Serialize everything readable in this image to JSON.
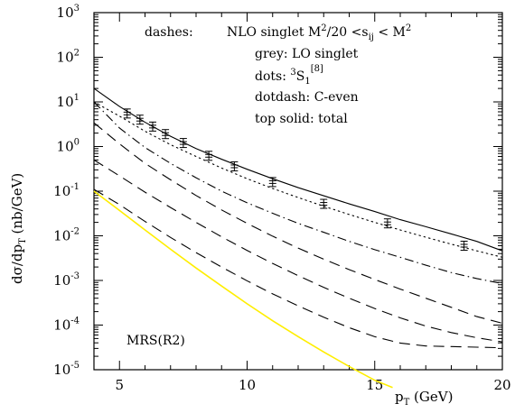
{
  "chart_data": {
    "type": "line",
    "title": "",
    "xlabel": "p_T (GeV)",
    "ylabel": "dσ/dp_T (nb/GeV)",
    "xlim": [
      4,
      20
    ],
    "ylim": [
      1e-05,
      1000
    ],
    "yscale": "log",
    "grid": false,
    "x_ticks": [
      {
        "value": 5,
        "label": "5"
      },
      {
        "value": 10,
        "label": "10"
      },
      {
        "value": 15,
        "label": "15"
      },
      {
        "value": 20,
        "label": "20"
      }
    ],
    "y_ticks": [
      {
        "value": 1000,
        "base": "10",
        "exp": "3"
      },
      {
        "value": 100,
        "base": "10",
        "exp": "2"
      },
      {
        "value": 10,
        "base": "10",
        "exp": "1"
      },
      {
        "value": 1,
        "base": "10",
        "exp": "0"
      },
      {
        "value": 0.1,
        "base": "10",
        "exp": "-1"
      },
      {
        "value": 0.01,
        "base": "10",
        "exp": "-2"
      },
      {
        "value": 0.001,
        "base": "10",
        "exp": "-3"
      },
      {
        "value": 0.0001,
        "base": "10",
        "exp": "-4"
      },
      {
        "value": 1e-05,
        "base": "10",
        "exp": "-5"
      }
    ],
    "legend_text": {
      "line1_a": "dashes:",
      "line1_b": "NLO singlet M",
      "line1_sup1": "2",
      "line1_c": "/20 <s",
      "line1_sub": "ij",
      "line1_d": " < M",
      "line1_sup2": "2",
      "line2": "grey: LO singlet",
      "line3_a": "dots: ",
      "line3_sup1": "3",
      "line3_b": "S",
      "line3_sub": "1",
      "line3_sup2": "[8]",
      "line4": "dotdash: C-even",
      "line5": "top solid: total"
    },
    "note": "MRS(R2)",
    "series": [
      {
        "style": "solid",
        "color": "#000000",
        "x": [
          4,
          5,
          6,
          7,
          8,
          9,
          10,
          11,
          12,
          13,
          14,
          15,
          16,
          17,
          18,
          19,
          20
        ],
        "y": [
          20,
          7.9,
          3.5,
          1.7,
          0.9,
          0.52,
          0.31,
          0.19,
          0.12,
          0.079,
          0.052,
          0.035,
          0.023,
          0.016,
          0.011,
          0.0075,
          0.0046
        ]
      },
      {
        "style": "dotted",
        "color": "#000000",
        "x": [
          4,
          5,
          6,
          7,
          8,
          9,
          10,
          11,
          12,
          13,
          14,
          15,
          16,
          17,
          18,
          19,
          20
        ],
        "y": [
          10,
          4.8,
          2.2,
          1.1,
          0.6,
          0.33,
          0.19,
          0.115,
          0.072,
          0.046,
          0.03,
          0.02,
          0.0135,
          0.0093,
          0.0065,
          0.0046,
          0.0033
        ]
      },
      {
        "style": "dotdash",
        "color": "#000000",
        "x": [
          4,
          5,
          6,
          7,
          8,
          9,
          10,
          11,
          12,
          13,
          14,
          15,
          16,
          17,
          18,
          19,
          20
        ],
        "y": [
          10,
          2.6,
          0.95,
          0.42,
          0.2,
          0.1,
          0.055,
          0.032,
          0.019,
          0.012,
          0.0075,
          0.0049,
          0.0033,
          0.0022,
          0.0015,
          0.0011,
          0.00085
        ]
      },
      {
        "style": "dashed",
        "color": "#000000",
        "x": [
          4,
          5,
          6,
          7,
          8,
          9,
          10,
          11,
          12,
          13,
          14,
          15,
          16,
          17,
          18,
          19,
          20
        ],
        "y": [
          3.4,
          1.15,
          0.42,
          0.18,
          0.08,
          0.038,
          0.019,
          0.0098,
          0.0053,
          0.003,
          0.00175,
          0.00105,
          0.00064,
          0.0004,
          0.00025,
          0.000155,
          0.00011
        ]
      },
      {
        "style": "dashed",
        "color": "#000000",
        "x": [
          4,
          5,
          6,
          7,
          8,
          9,
          10,
          11,
          12,
          13,
          14,
          15,
          16,
          17,
          18,
          19,
          20
        ],
        "y": [
          0.5,
          0.22,
          0.095,
          0.043,
          0.02,
          0.0095,
          0.0047,
          0.0024,
          0.00128,
          0.0007,
          0.0004,
          0.000235,
          0.000145,
          9.5e-05,
          6.8e-05,
          5.2e-05,
          4.2e-05
        ]
      },
      {
        "style": "dashed",
        "color": "#000000",
        "x": [
          4,
          5,
          6,
          7,
          8,
          9,
          10,
          11,
          12,
          13,
          14,
          15,
          16,
          17,
          18,
          19,
          20
        ],
        "y": [
          0.11,
          0.05,
          0.021,
          0.0092,
          0.0042,
          0.002,
          0.00098,
          0.0005,
          0.00027,
          0.00015,
          8.75e-05,
          5.5e-05,
          3.95e-05,
          3.4e-05,
          3.3e-05,
          3.2e-05,
          3.1e-05
        ]
      },
      {
        "style": "solid",
        "color": "#ffee00",
        "x": [
          4,
          5,
          6,
          7,
          8,
          9,
          10,
          11,
          12,
          13,
          14,
          15,
          15.7
        ],
        "y": [
          0.1,
          0.037,
          0.0135,
          0.005,
          0.0019,
          0.00075,
          0.0003,
          0.000125,
          5.5e-05,
          2.5e-05,
          1.18e-05,
          5.8e-06,
          4e-06
        ]
      }
    ],
    "points": {
      "x": [
        5.3,
        5.8,
        6.3,
        6.8,
        7.5,
        8.5,
        9.5,
        11,
        13,
        15.5,
        18.5
      ],
      "y": [
        5.5,
        4.0,
        2.8,
        1.9,
        1.2,
        0.62,
        0.36,
        0.16,
        0.052,
        0.019,
        0.006
      ]
    }
  }
}
